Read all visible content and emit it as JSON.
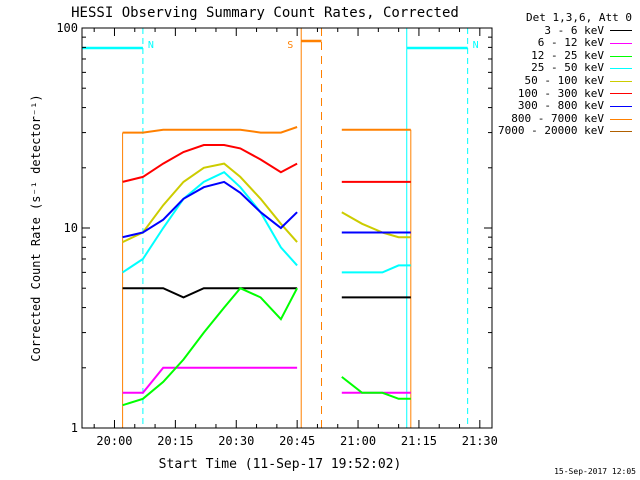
{
  "chart_data": {
    "type": "line",
    "title": "HESSI Observing Summary Count Rates, Corrected",
    "xlabel": "Start Time (11-Sep-17 19:52:02)",
    "ylabel": "Corrected Count Rate (s⁻¹ detector⁻¹)",
    "yscale": "log",
    "xlim": [
      "19:52",
      "21:33"
    ],
    "ylim": [
      1,
      100
    ],
    "xticks": [
      "20:00",
      "20:15",
      "20:30",
      "20:45",
      "21:00",
      "21:15",
      "21:30"
    ],
    "yticks": [
      "1",
      "10",
      "100"
    ],
    "legend_title": "Det 1,3,6, Att 0",
    "legend_position": "top-right",
    "data_gaps": [
      [
        "20:46",
        "20:56"
      ]
    ],
    "shading": [
      {
        "label": "N",
        "color": "#00ffff",
        "style": "night",
        "intervals": [
          [
            "19:52",
            "20:07"
          ],
          [
            "21:12",
            "21:27"
          ]
        ]
      },
      {
        "label": "S",
        "color": "#ff8000",
        "style": "saa",
        "intervals": [
          [
            "20:46",
            "20:51"
          ]
        ]
      }
    ],
    "x": [
      "20:02",
      "20:07",
      "20:12",
      "20:17",
      "20:22",
      "20:27",
      "20:31",
      "20:36",
      "20:41",
      "20:45",
      "20:56",
      "21:01",
      "21:06",
      "21:10",
      "21:13"
    ],
    "series": [
      {
        "name": "3 - 6 keV",
        "color": "#000000",
        "values": [
          5,
          5,
          5,
          4.5,
          5,
          5,
          5,
          5,
          5,
          5,
          4.5,
          4.5,
          4.5,
          4.5,
          4.5
        ]
      },
      {
        "name": "6 - 12 keV",
        "color": "#ff00ff",
        "values": [
          1.5,
          1.5,
          2,
          2,
          2,
          2,
          2,
          2,
          2,
          2,
          1.5,
          1.5,
          1.5,
          1.5,
          1.5
        ]
      },
      {
        "name": "12 - 25 keV",
        "color": "#00ff00",
        "values": [
          1.3,
          1.4,
          1.7,
          2.2,
          3,
          4,
          5,
          4.5,
          3.5,
          5,
          1.8,
          1.5,
          1.5,
          1.4,
          1.4
        ]
      },
      {
        "name": "25 - 50 keV",
        "color": "#00ffff",
        "values": [
          6,
          7,
          10,
          14,
          17,
          19,
          16,
          12,
          8,
          6.5,
          6,
          6,
          6,
          6.5,
          6.5
        ]
      },
      {
        "name": "50 - 100 keV",
        "color": "#cccc00",
        "values": [
          8.5,
          9.5,
          13,
          17,
          20,
          21,
          18,
          14,
          10.5,
          8.5,
          12,
          10.5,
          9.5,
          9,
          9
        ]
      },
      {
        "name": "100 - 300 keV",
        "color": "#ff0000",
        "values": [
          17,
          18,
          21,
          24,
          26,
          26,
          25,
          22,
          19,
          21,
          17,
          17,
          17,
          17,
          17
        ]
      },
      {
        "name": "300 - 800 keV",
        "color": "#0000ff",
        "values": [
          9,
          9.5,
          11,
          14,
          16,
          17,
          15,
          12,
          10,
          12,
          9.5,
          9.5,
          9.5,
          9.5,
          9.5
        ]
      },
      {
        "name": "800 - 7000 keV",
        "color": "#ff8000",
        "values": [
          30,
          30,
          31,
          31,
          31,
          31,
          31,
          30,
          30,
          32,
          31,
          31,
          31,
          31,
          31
        ]
      },
      {
        "name": "7000 - 20000 keV",
        "color": "#b06000",
        "values": [
          null,
          null,
          null,
          null,
          null,
          null,
          null,
          null,
          null,
          null,
          null,
          null,
          null,
          null,
          null
        ]
      }
    ]
  },
  "footer": {
    "timestamp": "15-Sep-2017 12:05"
  }
}
